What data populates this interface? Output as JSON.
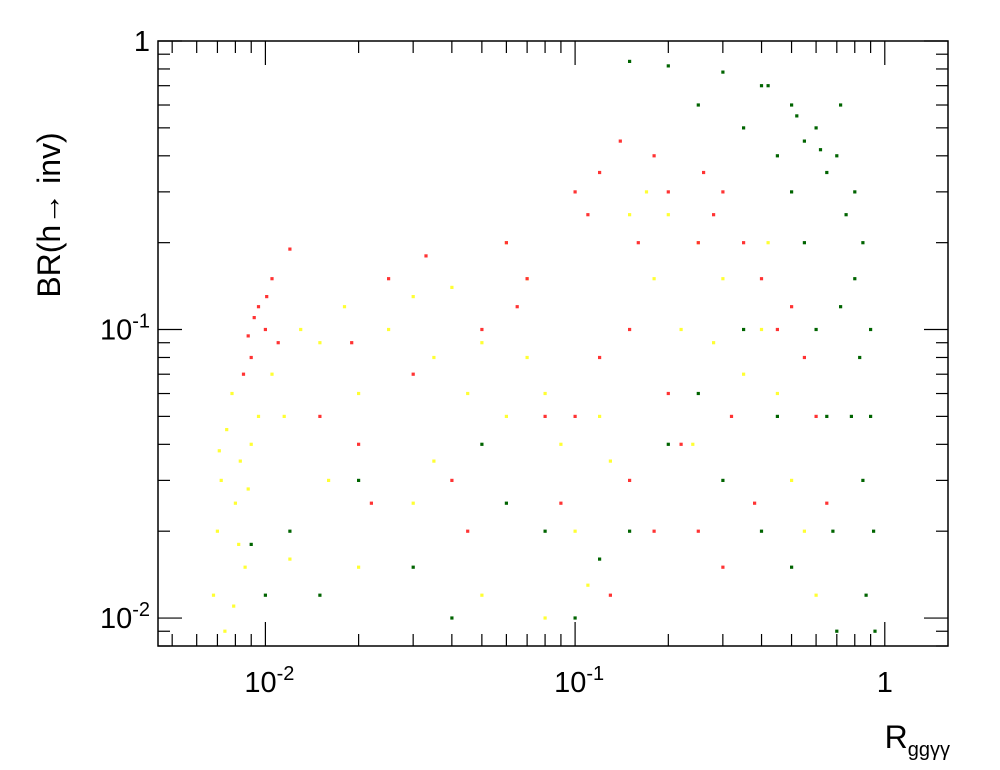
{
  "chart_data": {
    "type": "scatter",
    "title": "",
    "xlabel": {
      "main": "R",
      "sub": "ggγγ"
    },
    "ylabel": "BR(h→ inv)",
    "xscale": "log",
    "yscale": "log",
    "xlim": [
      0.0045,
      1.6
    ],
    "ylim": [
      0.008,
      1
    ],
    "grid": false,
    "legend": "none",
    "x_ticks": [
      {
        "value": 0.01,
        "base": "10",
        "exp": "-2"
      },
      {
        "value": 0.1,
        "base": "10",
        "exp": "-1"
      },
      {
        "value": 1,
        "base": "1",
        "exp": ""
      }
    ],
    "y_ticks": [
      {
        "value": 0.01,
        "base": "10",
        "exp": "-2"
      },
      {
        "value": 0.1,
        "base": "10",
        "exp": "-1"
      },
      {
        "value": 1,
        "base": "1",
        "exp": ""
      }
    ],
    "series": [
      {
        "color": "#ffff33",
        "values": [
          [
            0.0068,
            0.012
          ],
          [
            0.007,
            0.02
          ],
          [
            0.0072,
            0.03
          ],
          [
            0.0075,
            0.045
          ],
          [
            0.0078,
            0.06
          ],
          [
            0.008,
            0.025
          ],
          [
            0.0083,
            0.035
          ],
          [
            0.0086,
            0.015
          ],
          [
            0.009,
            0.04
          ],
          [
            0.0095,
            0.05
          ],
          [
            0.0074,
            0.009
          ],
          [
            0.0079,
            0.011
          ],
          [
            0.0082,
            0.018
          ],
          [
            0.0088,
            0.028
          ],
          [
            0.0071,
            0.038
          ],
          [
            0.0105,
            0.07
          ],
          [
            0.0115,
            0.05
          ],
          [
            0.013,
            0.1
          ],
          [
            0.015,
            0.09
          ],
          [
            0.018,
            0.12
          ],
          [
            0.02,
            0.06
          ],
          [
            0.025,
            0.1
          ],
          [
            0.03,
            0.13
          ],
          [
            0.035,
            0.08
          ],
          [
            0.04,
            0.14
          ],
          [
            0.045,
            0.06
          ],
          [
            0.05,
            0.09
          ],
          [
            0.06,
            0.05
          ],
          [
            0.07,
            0.15
          ],
          [
            0.08,
            0.06
          ],
          [
            0.09,
            0.04
          ],
          [
            0.1,
            0.02
          ],
          [
            0.12,
            0.05
          ],
          [
            0.13,
            0.035
          ],
          [
            0.15,
            0.25
          ],
          [
            0.18,
            0.15
          ],
          [
            0.2,
            0.25
          ],
          [
            0.22,
            0.1
          ],
          [
            0.25,
            0.2
          ],
          [
            0.3,
            0.15
          ],
          [
            0.35,
            0.07
          ],
          [
            0.4,
            0.1
          ],
          [
            0.45,
            0.06
          ],
          [
            0.5,
            0.03
          ],
          [
            0.55,
            0.02
          ],
          [
            0.6,
            0.012
          ],
          [
            0.02,
            0.015
          ],
          [
            0.03,
            0.025
          ],
          [
            0.05,
            0.012
          ],
          [
            0.08,
            0.01
          ],
          [
            0.012,
            0.016
          ],
          [
            0.016,
            0.03
          ],
          [
            0.06,
            0.2
          ],
          [
            0.17,
            0.3
          ],
          [
            0.28,
            0.09
          ],
          [
            0.42,
            0.2
          ],
          [
            0.035,
            0.035
          ],
          [
            0.11,
            0.013
          ],
          [
            0.24,
            0.04
          ],
          [
            0.07,
            0.08
          ]
        ]
      },
      {
        "color": "#ff3333",
        "values": [
          [
            0.009,
            0.08
          ],
          [
            0.01,
            0.1
          ],
          [
            0.0095,
            0.12
          ],
          [
            0.011,
            0.09
          ],
          [
            0.0085,
            0.07
          ],
          [
            0.0105,
            0.15
          ],
          [
            0.012,
            0.19
          ],
          [
            0.0092,
            0.11
          ],
          [
            0.0101,
            0.13
          ],
          [
            0.0088,
            0.095
          ],
          [
            0.015,
            0.05
          ],
          [
            0.02,
            0.04
          ],
          [
            0.025,
            0.15
          ],
          [
            0.03,
            0.07
          ],
          [
            0.04,
            0.03
          ],
          [
            0.05,
            0.1
          ],
          [
            0.06,
            0.2
          ],
          [
            0.07,
            0.15
          ],
          [
            0.08,
            0.05
          ],
          [
            0.1,
            0.3
          ],
          [
            0.12,
            0.35
          ],
          [
            0.15,
            0.1
          ],
          [
            0.18,
            0.4
          ],
          [
            0.2,
            0.3
          ],
          [
            0.25,
            0.2
          ],
          [
            0.28,
            0.25
          ],
          [
            0.3,
            0.3
          ],
          [
            0.35,
            0.2
          ],
          [
            0.4,
            0.15
          ],
          [
            0.45,
            0.1
          ],
          [
            0.2,
            0.06
          ],
          [
            0.22,
            0.04
          ],
          [
            0.25,
            0.02
          ],
          [
            0.3,
            0.015
          ],
          [
            0.15,
            0.03
          ],
          [
            0.12,
            0.08
          ],
          [
            0.1,
            0.05
          ],
          [
            0.09,
            0.025
          ],
          [
            0.5,
            0.12
          ],
          [
            0.55,
            0.08
          ],
          [
            0.6,
            0.05
          ],
          [
            0.65,
            0.025
          ],
          [
            0.13,
            0.012
          ],
          [
            0.045,
            0.02
          ],
          [
            0.022,
            0.025
          ],
          [
            0.18,
            0.02
          ],
          [
            0.32,
            0.05
          ],
          [
            0.38,
            0.025
          ],
          [
            0.16,
            0.2
          ],
          [
            0.26,
            0.35
          ],
          [
            0.14,
            0.45
          ],
          [
            0.11,
            0.25
          ],
          [
            0.019,
            0.09
          ],
          [
            0.033,
            0.18
          ],
          [
            0.065,
            0.12
          ]
        ]
      },
      {
        "color": "#006400",
        "values": [
          [
            0.15,
            0.85
          ],
          [
            0.2,
            0.82
          ],
          [
            0.3,
            0.78
          ],
          [
            0.4,
            0.7
          ],
          [
            0.5,
            0.6
          ],
          [
            0.6,
            0.5
          ],
          [
            0.7,
            0.4
          ],
          [
            0.8,
            0.3
          ],
          [
            0.85,
            0.2
          ],
          [
            0.9,
            0.1
          ],
          [
            0.9,
            0.05
          ],
          [
            0.92,
            0.02
          ],
          [
            0.93,
            0.009
          ],
          [
            0.25,
            0.6
          ],
          [
            0.35,
            0.5
          ],
          [
            0.45,
            0.4
          ],
          [
            0.5,
            0.3
          ],
          [
            0.55,
            0.2
          ],
          [
            0.6,
            0.1
          ],
          [
            0.65,
            0.05
          ],
          [
            0.68,
            0.02
          ],
          [
            0.7,
            0.009
          ],
          [
            0.55,
            0.45
          ],
          [
            0.65,
            0.35
          ],
          [
            0.75,
            0.25
          ],
          [
            0.8,
            0.15
          ],
          [
            0.83,
            0.08
          ],
          [
            0.85,
            0.03
          ],
          [
            0.87,
            0.012
          ],
          [
            0.72,
            0.6
          ],
          [
            0.42,
            0.7
          ],
          [
            0.52,
            0.55
          ],
          [
            0.62,
            0.42
          ],
          [
            0.72,
            0.12
          ],
          [
            0.78,
            0.05
          ],
          [
            0.01,
            0.012
          ],
          [
            0.012,
            0.02
          ],
          [
            0.02,
            0.03
          ],
          [
            0.03,
            0.015
          ],
          [
            0.05,
            0.04
          ],
          [
            0.08,
            0.02
          ],
          [
            0.1,
            0.01
          ],
          [
            0.15,
            0.02
          ],
          [
            0.2,
            0.04
          ],
          [
            0.25,
            0.06
          ],
          [
            0.3,
            0.03
          ],
          [
            0.35,
            0.1
          ],
          [
            0.4,
            0.02
          ],
          [
            0.45,
            0.05
          ],
          [
            0.5,
            0.015
          ],
          [
            0.015,
            0.012
          ],
          [
            0.009,
            0.018
          ],
          [
            0.04,
            0.01
          ],
          [
            0.06,
            0.025
          ],
          [
            0.12,
            0.016
          ]
        ]
      }
    ]
  }
}
